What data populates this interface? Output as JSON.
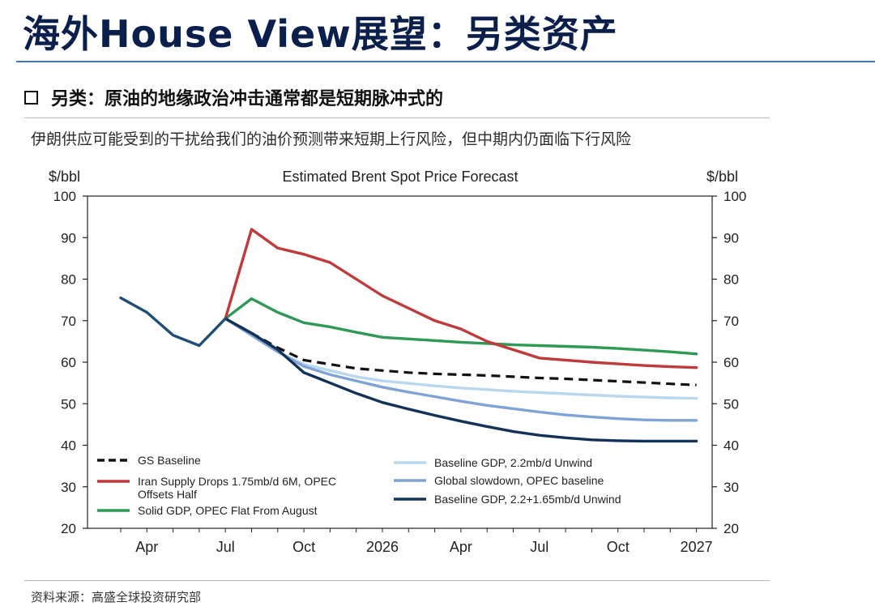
{
  "header": {
    "title": "海外House View展望：另类资产",
    "section_heading": "另类：原油的地缘政治冲击通常都是短期脉冲式的",
    "subtitle": "伊朗供应可能受到的干扰给我们的油价预测带来短期上行风险，但中期内仍面临下行风险"
  },
  "footer": {
    "source": "资料来源：高盛全球投资研究部"
  },
  "chart_data": {
    "type": "line",
    "title": "Estimated Brent Spot Price Forecast",
    "ylabel_left": "$/bbl",
    "ylabel_right": "$/bbl",
    "xlabel": "",
    "ylim": [
      20,
      100
    ],
    "yticks": [
      20,
      30,
      40,
      50,
      60,
      70,
      80,
      90,
      100
    ],
    "x_months": [
      "2025-03",
      "2025-04",
      "2025-05",
      "2025-06",
      "2025-07",
      "2025-08",
      "2025-09",
      "2025-10",
      "2025-11",
      "2025-12",
      "2026-01",
      "2026-02",
      "2026-03",
      "2026-04",
      "2026-05",
      "2026-06",
      "2026-07",
      "2026-08",
      "2026-09",
      "2026-10",
      "2026-11",
      "2026-12",
      "2027-01"
    ],
    "x_tick_labels": [
      {
        "label": "Apr",
        "month": "2025-04"
      },
      {
        "label": "Jul",
        "month": "2025-07"
      },
      {
        "label": "Oct",
        "month": "2025-10"
      },
      {
        "label": "2026",
        "month": "2026-01"
      },
      {
        "label": "Apr",
        "month": "2026-04"
      },
      {
        "label": "Jul",
        "month": "2026-07"
      },
      {
        "label": "Oct",
        "month": "2026-10"
      },
      {
        "label": "2027",
        "month": "2027-01"
      }
    ],
    "history": {
      "months": [
        "2025-03",
        "2025-04",
        "2025-05",
        "2025-06",
        "2025-07"
      ],
      "values": [
        75.5,
        72,
        66.5,
        64,
        70.5
      ],
      "color": "#1f4e79"
    },
    "series": [
      {
        "name": "GS Baseline",
        "color": "#111111",
        "dash": true,
        "months": [
          "2025-07",
          "2025-08",
          "2025-09",
          "2025-10",
          "2025-11",
          "2025-12",
          "2026-01",
          "2026-02",
          "2026-03",
          "2026-04",
          "2026-05",
          "2026-06",
          "2026-07",
          "2026-08",
          "2026-09",
          "2026-10",
          "2026-11",
          "2026-12",
          "2027-01"
        ],
        "values": [
          70.5,
          67,
          63.5,
          60.5,
          59.5,
          58.5,
          58,
          57.5,
          57.2,
          57,
          56.8,
          56.5,
          56.2,
          56,
          55.7,
          55.4,
          55.1,
          54.8,
          54.5
        ]
      },
      {
        "name": "Iran Supply Drops 1.75mb/d 6M, OPEC Offsets Half",
        "color": "#c0393b",
        "dash": false,
        "months": [
          "2025-07",
          "2025-08",
          "2025-09",
          "2025-10",
          "2025-11",
          "2025-12",
          "2026-01",
          "2026-02",
          "2026-03",
          "2026-04",
          "2026-05",
          "2026-06",
          "2026-07",
          "2026-08",
          "2026-09",
          "2026-10",
          "2026-11",
          "2026-12",
          "2027-01"
        ],
        "values": [
          70.5,
          92,
          87.5,
          86,
          84,
          80,
          76,
          73,
          70,
          68,
          65,
          63,
          61,
          60.5,
          60,
          59.6,
          59.2,
          58.9,
          58.7
        ]
      },
      {
        "name": "Solid GDP, OPEC Flat From August",
        "color": "#2f9a55",
        "dash": false,
        "months": [
          "2025-07",
          "2025-08",
          "2025-09",
          "2025-10",
          "2025-11",
          "2025-12",
          "2026-01",
          "2026-02",
          "2026-03",
          "2026-04",
          "2026-05",
          "2026-06",
          "2026-07",
          "2026-08",
          "2026-09",
          "2026-10",
          "2026-11",
          "2026-12",
          "2027-01"
        ],
        "values": [
          70.5,
          75.3,
          72,
          69.5,
          68.5,
          67.2,
          66,
          65.6,
          65.2,
          64.8,
          64.5,
          64.2,
          64,
          63.8,
          63.6,
          63.3,
          62.9,
          62.5,
          62
        ]
      },
      {
        "name": "Baseline GDP, 2.2mb/d Unwind",
        "color": "#b9d7ee",
        "dash": false,
        "months": [
          "2025-07",
          "2025-08",
          "2025-09",
          "2025-10",
          "2025-11",
          "2025-12",
          "2026-01",
          "2026-02",
          "2026-03",
          "2026-04",
          "2026-05",
          "2026-06",
          "2026-07",
          "2026-08",
          "2026-09",
          "2026-10",
          "2026-11",
          "2026-12",
          "2027-01"
        ],
        "values": [
          70.5,
          66.5,
          62.5,
          59.5,
          58,
          56.5,
          55.5,
          54.9,
          54.3,
          53.8,
          53.4,
          53,
          52.7,
          52.4,
          52.1,
          51.8,
          51.6,
          51.4,
          51.3
        ]
      },
      {
        "name": "Global slowdown, OPEC baseline",
        "color": "#7ea3d4",
        "dash": false,
        "months": [
          "2025-07",
          "2025-08",
          "2025-09",
          "2025-10",
          "2025-11",
          "2025-12",
          "2026-01",
          "2026-02",
          "2026-03",
          "2026-04",
          "2026-05",
          "2026-06",
          "2026-07",
          "2026-08",
          "2026-09",
          "2026-10",
          "2026-11",
          "2026-12",
          "2027-01"
        ],
        "values": [
          70.5,
          66.5,
          62.5,
          59,
          57,
          55.5,
          54,
          52.8,
          51.7,
          50.6,
          49.6,
          48.8,
          48,
          47.3,
          46.8,
          46.4,
          46.1,
          46,
          46
        ]
      },
      {
        "name": "Baseline GDP, 2.2+1.65mb/d Unwind",
        "color": "#123257",
        "dash": false,
        "months": [
          "2025-07",
          "2025-08",
          "2025-09",
          "2025-10",
          "2025-11",
          "2025-12",
          "2026-01",
          "2026-02",
          "2026-03",
          "2026-04",
          "2026-05",
          "2026-06",
          "2026-07",
          "2026-08",
          "2026-09",
          "2026-10",
          "2026-11",
          "2026-12",
          "2027-01"
        ],
        "values": [
          70.5,
          67,
          63,
          57.5,
          55,
          52.5,
          50.3,
          48.7,
          47.2,
          45.8,
          44.5,
          43.3,
          42.4,
          41.8,
          41.3,
          41.1,
          41,
          41,
          41
        ]
      }
    ],
    "legend_placement": "bottom, two columns inside plot",
    "grid": false
  }
}
